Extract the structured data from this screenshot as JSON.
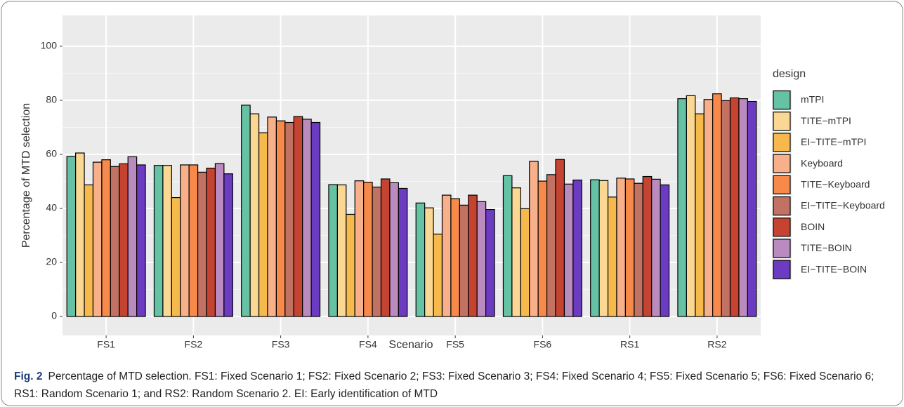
{
  "chart_data": {
    "type": "bar",
    "x_label": "Scenario",
    "y_label": "Percentage of MTD selection",
    "legend_title": "design",
    "categories": [
      "FS1",
      "FS2",
      "FS3",
      "FS4",
      "FS5",
      "FS6",
      "RS1",
      "RS2"
    ],
    "series": [
      {
        "name": "mTPI",
        "color": "#66c2a5",
        "values": [
          59.2,
          55.9,
          78.2,
          48.8,
          42.0,
          52.1,
          50.6,
          80.6
        ]
      },
      {
        "name": "TITE−mTPI",
        "color": "#fad792",
        "values": [
          60.5,
          55.9,
          75.0,
          48.7,
          40.2,
          47.6,
          50.3,
          81.7
        ]
      },
      {
        "name": "EI−TITE−mTPI",
        "color": "#f6b94b",
        "values": [
          48.7,
          44.0,
          68.0,
          37.8,
          30.5,
          39.9,
          44.2,
          75.0
        ]
      },
      {
        "name": "Keyboard",
        "color": "#f7b08a",
        "values": [
          57.1,
          56.1,
          73.8,
          50.2,
          44.9,
          57.4,
          51.2,
          80.3
        ]
      },
      {
        "name": "TITE−Keyboard",
        "color": "#f78a4b",
        "values": [
          58.0,
          56.1,
          72.4,
          49.7,
          43.6,
          50.1,
          50.9,
          82.4
        ]
      },
      {
        "name": "EI−TITE−Keyboard",
        "color": "#c27262",
        "values": [
          55.5,
          53.4,
          71.8,
          47.9,
          41.2,
          52.5,
          49.3,
          79.9
        ]
      },
      {
        "name": "BOIN",
        "color": "#c54431",
        "values": [
          56.5,
          54.9,
          74.0,
          50.9,
          44.9,
          58.1,
          51.8,
          80.9
        ]
      },
      {
        "name": "TITE−BOIN",
        "color": "#b98bbf",
        "values": [
          59.1,
          56.6,
          73.0,
          49.5,
          42.5,
          49.0,
          50.8,
          80.6
        ]
      },
      {
        "name": "EI−TITE−BOIN",
        "color": "#6b3bc2",
        "values": [
          56.1,
          52.8,
          71.8,
          47.4,
          39.6,
          50.5,
          48.7,
          79.6
        ]
      }
    ],
    "ylim": [
      -7,
      111.4
    ],
    "yticks": [
      0,
      20,
      40,
      60,
      80,
      100
    ],
    "yminor": [
      10,
      30,
      50,
      70,
      90
    ],
    "grid": true
  },
  "caption": {
    "label": "Fig. 2",
    "text": "Percentage of MTD selection. FS1: Fixed Scenario 1; FS2: Fixed Scenario 2; FS3: Fixed Scenario 3; FS4: Fixed Scenario 4; FS5: Fixed Scenario 5; FS6: Fixed Scenario 6; RS1: Random Scenario 1; and RS2: Random Scenario 2. EI: Early identification of MTD"
  }
}
